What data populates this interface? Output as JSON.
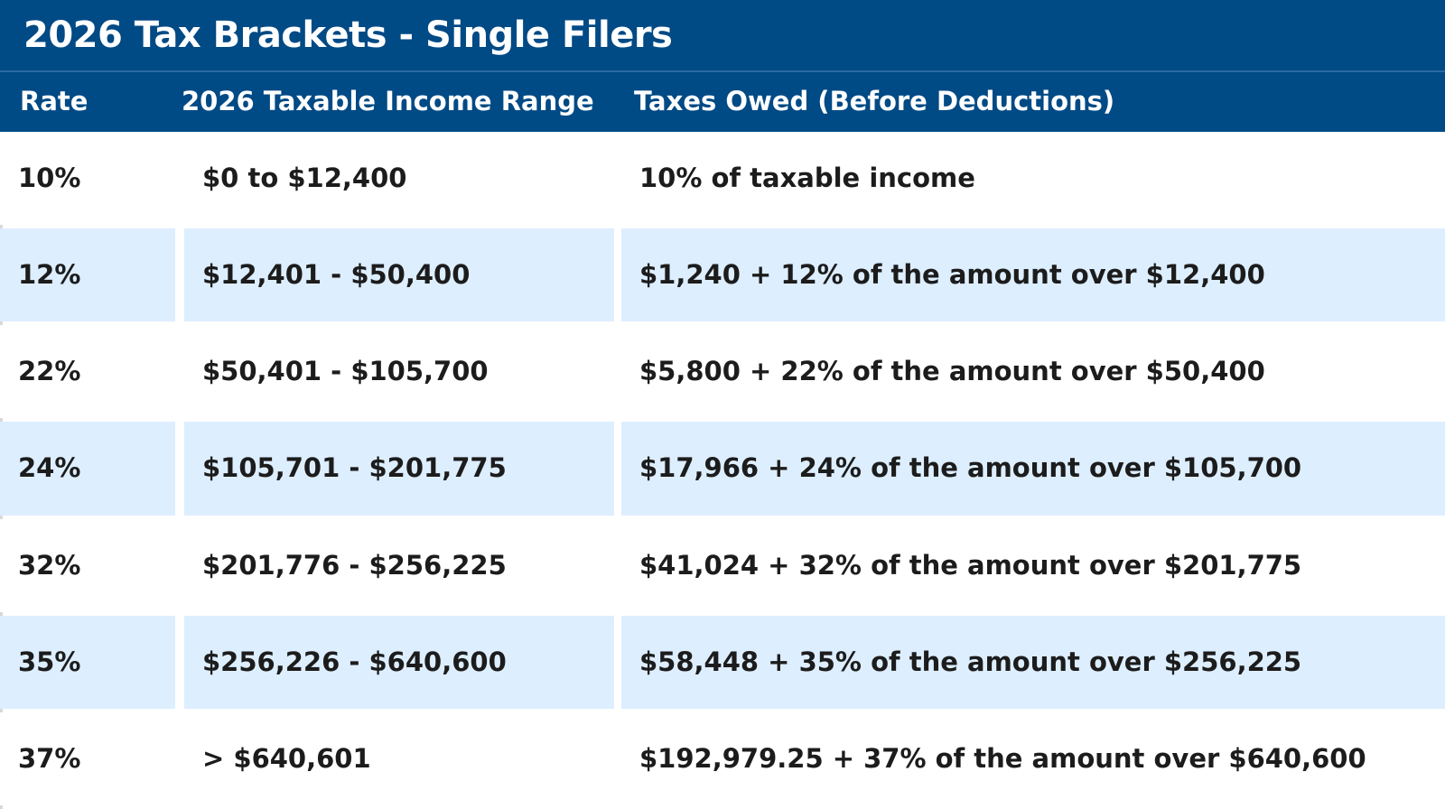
{
  "header": {
    "title": "2026 Tax Brackets - Single Filers"
  },
  "table": {
    "columns": [
      "Rate",
      "2026 Taxable Income Range",
      "Taxes Owed (Before Deductions)"
    ],
    "rows": [
      [
        "10%",
        "$0 to $12,400",
        "10% of taxable income"
      ],
      [
        "12%",
        "$12,401 - $50,400",
        "$1,240 + 12% of the amount over $12,400"
      ],
      [
        "22%",
        "$50,401 - $105,700",
        "$5,800 + 22% of the amount over $50,400"
      ],
      [
        "24%",
        "$105,701 - $201,775",
        "$17,966 + 24% of the amount over $105,700"
      ],
      [
        "32%",
        "$201,776 - $256,225",
        "$41,024 + 32% of the amount over $201,775"
      ],
      [
        "35%",
        "$256,226 - $640,600",
        "$58,448 + 35% of the amount over $256,225"
      ],
      [
        "37%",
        "> $640,601",
        "$192,979.25 + 37% of the amount over $640,600"
      ]
    ]
  }
}
